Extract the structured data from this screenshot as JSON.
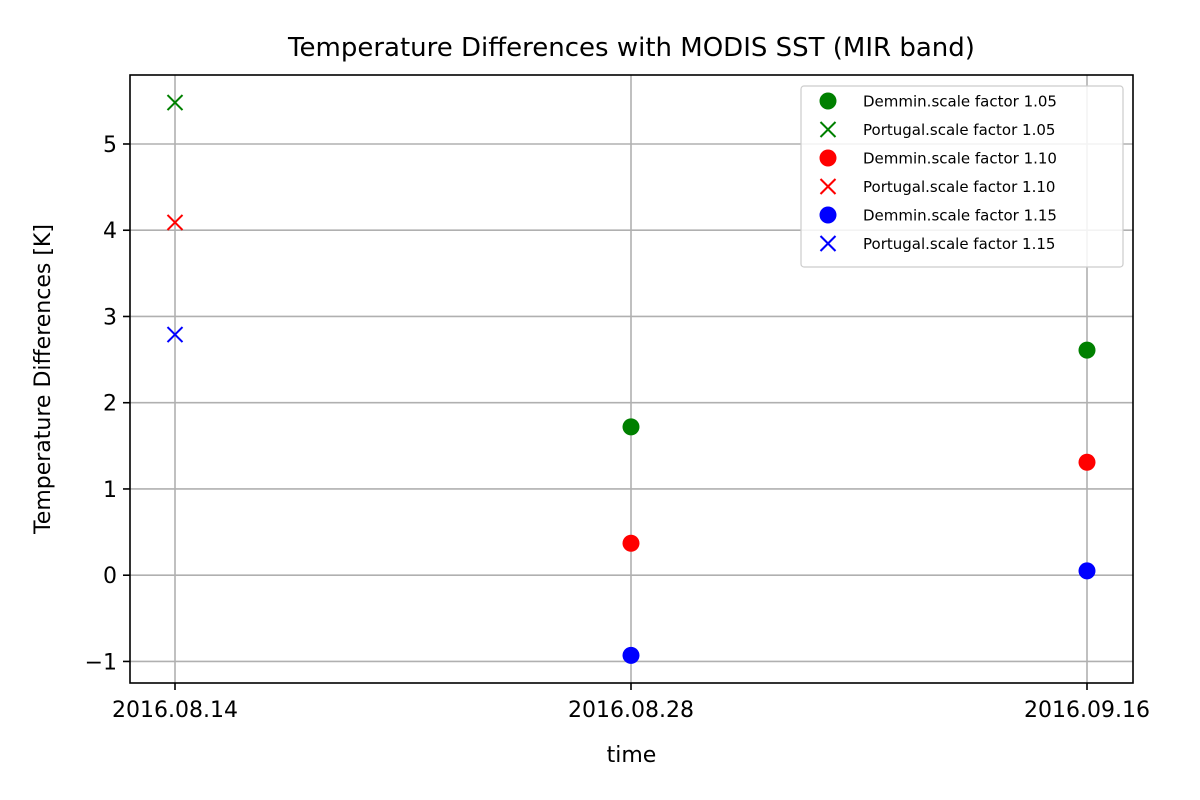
{
  "chart_data": {
    "type": "scatter",
    "title": "Temperature Differences with MODIS SST (MIR band)",
    "xlabel": "time",
    "ylabel": "Temperature Differences [K]",
    "categories": [
      "2016.08.14",
      "2016.08.28",
      "2016.09.16"
    ],
    "ylim": [
      -1.25,
      5.8
    ],
    "yticks": [
      -1,
      0,
      1,
      2,
      3,
      4,
      5
    ],
    "ytick_labels": [
      "−1",
      "0",
      "1",
      "2",
      "3",
      "4",
      "5"
    ],
    "grid": true,
    "legend_position": "top-right",
    "series": [
      {
        "name": "Demmin.scale factor 1.05",
        "marker": "circle",
        "color": "#008000",
        "x": [
          "2016.08.28",
          "2016.09.16"
        ],
        "values": [
          1.72,
          2.61
        ]
      },
      {
        "name": "Portugal.scale factor 1.05",
        "marker": "x",
        "color": "#008000",
        "x": [
          "2016.08.14"
        ],
        "values": [
          5.48
        ]
      },
      {
        "name": "Demmin.scale factor 1.10",
        "marker": "circle",
        "color": "#ff0000",
        "x": [
          "2016.08.28",
          "2016.09.16"
        ],
        "values": [
          0.37,
          1.31
        ]
      },
      {
        "name": "Portugal.scale factor 1.10",
        "marker": "x",
        "color": "#ff0000",
        "x": [
          "2016.08.14"
        ],
        "values": [
          4.09
        ]
      },
      {
        "name": "Demmin.scale factor 1.15",
        "marker": "circle",
        "color": "#0000ff",
        "x": [
          "2016.08.28",
          "2016.09.16"
        ],
        "values": [
          -0.93,
          0.05
        ]
      },
      {
        "name": "Portugal.scale factor 1.15",
        "marker": "x",
        "color": "#0000ff",
        "x": [
          "2016.08.14"
        ],
        "values": [
          2.79
        ]
      }
    ]
  }
}
